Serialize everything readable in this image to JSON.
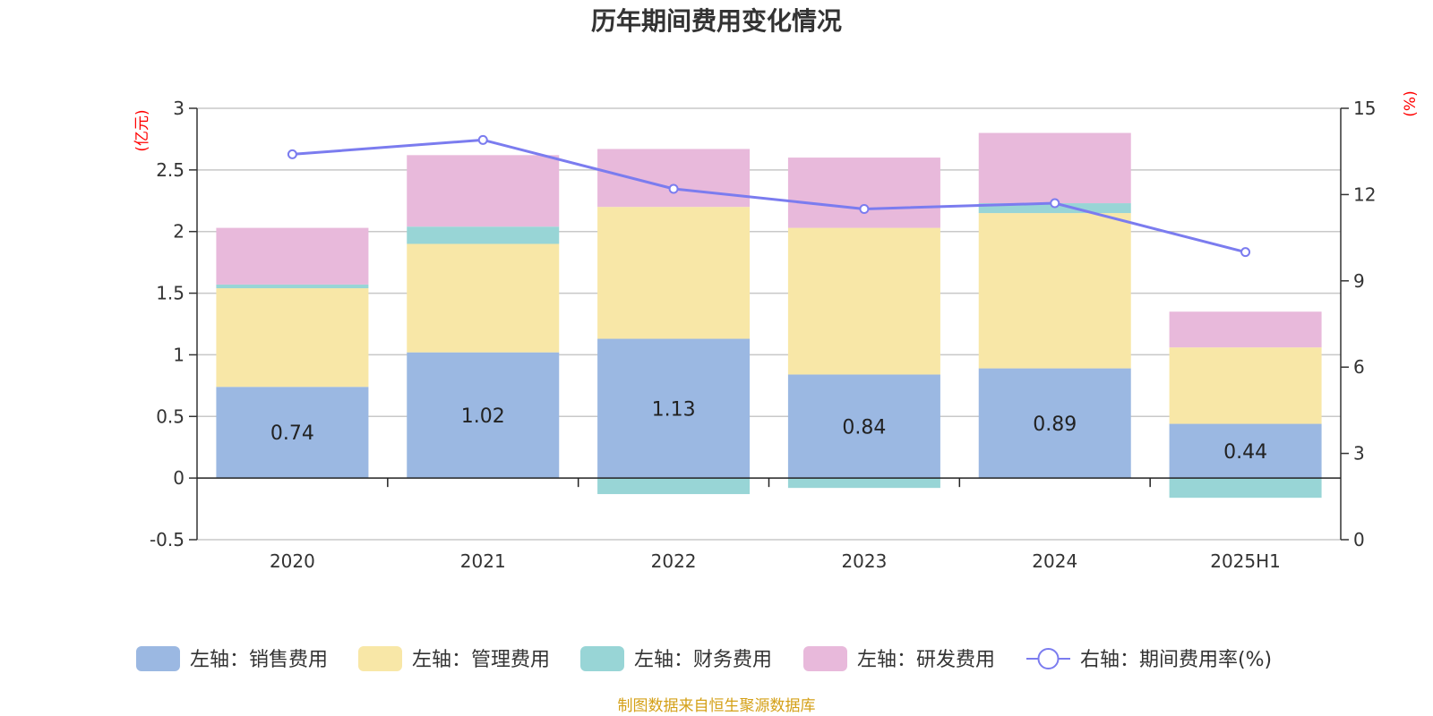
{
  "chart_data": {
    "type": "bar",
    "title": "历年期间费用变化情况",
    "categories": [
      "2020",
      "2021",
      "2022",
      "2023",
      "2024",
      "2025H1"
    ],
    "left_axis": {
      "unit": "(亿元)",
      "ylim": [
        -0.5,
        3
      ],
      "ticks": [
        "3",
        "2.5",
        "2",
        "1.5",
        "1",
        "0.5",
        "0",
        "-0.5"
      ]
    },
    "right_axis": {
      "unit": "(%)",
      "ylim": [
        0,
        15
      ],
      "ticks": [
        "15",
        "12",
        "9",
        "6",
        "3",
        "0"
      ]
    },
    "series": [
      {
        "name": "左轴：销售费用",
        "type": "bar",
        "color": "#9bb8e2",
        "values": [
          0.74,
          1.02,
          1.13,
          0.84,
          0.89,
          0.44
        ],
        "labels": [
          "0.74",
          "1.02",
          "1.13",
          "0.84",
          "0.89",
          "0.44"
        ]
      },
      {
        "name": "左轴：管理费用",
        "type": "bar",
        "color": "#f8e7a7",
        "values": [
          0.8,
          0.88,
          1.07,
          1.19,
          1.26,
          0.62
        ]
      },
      {
        "name": "左轴：财务费用",
        "type": "bar",
        "color": "#98d5d6",
        "values": [
          0.03,
          0.14,
          -0.13,
          -0.08,
          0.08,
          -0.16
        ]
      },
      {
        "name": "左轴：研发费用",
        "type": "bar",
        "color": "#e8b9db",
        "values": [
          0.46,
          0.58,
          0.47,
          0.57,
          0.57,
          0.29
        ]
      },
      {
        "name": "右轴：期间费用率(%)",
        "type": "line",
        "axis": "right",
        "color": "#7b7cef",
        "values": [
          13.4,
          13.9,
          12.2,
          11.5,
          11.7,
          10.0
        ]
      }
    ],
    "grid": true,
    "legend_position": "bottom"
  },
  "source_note": "制图数据来自恒生聚源数据库"
}
